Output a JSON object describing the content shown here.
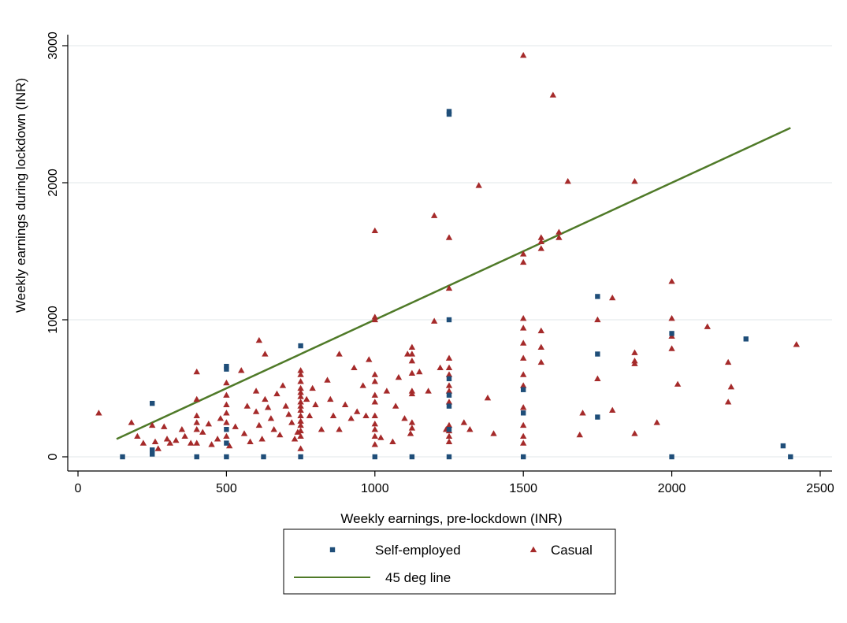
{
  "colors": {
    "self_employed": "#1f4e79",
    "casual": "#a52a2a",
    "line45": "#4f7a28",
    "grid": "#e8ecee",
    "axis": "#000000"
  },
  "chart_data": {
    "type": "scatter",
    "xlabel": "Weekly earnings, pre-lockdown (INR)",
    "ylabel": "Weekly earnings during lockdown (INR)",
    "xlim": [
      0,
      2500
    ],
    "ylim": [
      0,
      3000
    ],
    "xticks": [
      "0",
      "500",
      "1000",
      "1500",
      "2000",
      "2500"
    ],
    "yticks": [
      "0",
      "1000",
      "2000",
      "3000"
    ],
    "grid": "horizontal",
    "legend_position": "bottom",
    "series": [
      {
        "name": "Self-employed",
        "marker": "square",
        "points": [
          [
            150,
            0
          ],
          [
            250,
            390
          ],
          [
            250,
            50
          ],
          [
            250,
            20
          ],
          [
            400,
            0
          ],
          [
            500,
            0
          ],
          [
            500,
            660
          ],
          [
            500,
            640
          ],
          [
            500,
            200
          ],
          [
            500,
            100
          ],
          [
            625,
            0
          ],
          [
            750,
            0
          ],
          [
            750,
            810
          ],
          [
            1000,
            0
          ],
          [
            1125,
            0
          ],
          [
            1250,
            0
          ],
          [
            1250,
            2520
          ],
          [
            1250,
            2500
          ],
          [
            1250,
            1000
          ],
          [
            1250,
            570
          ],
          [
            1250,
            450
          ],
          [
            1250,
            370
          ],
          [
            1250,
            200
          ],
          [
            1500,
            0
          ],
          [
            1500,
            320
          ],
          [
            1500,
            490
          ],
          [
            1750,
            1170
          ],
          [
            1750,
            750
          ],
          [
            1750,
            290
          ],
          [
            2000,
            0
          ],
          [
            2000,
            900
          ],
          [
            2250,
            860
          ],
          [
            2375,
            80
          ],
          [
            2400,
            0
          ]
        ]
      },
      {
        "name": "Casual",
        "marker": "triangle",
        "points": [
          [
            70,
            320
          ],
          [
            180,
            250
          ],
          [
            200,
            150
          ],
          [
            220,
            100
          ],
          [
            250,
            230
          ],
          [
            260,
            110
          ],
          [
            270,
            60
          ],
          [
            290,
            220
          ],
          [
            300,
            130
          ],
          [
            310,
            100
          ],
          [
            330,
            120
          ],
          [
            350,
            200
          ],
          [
            360,
            150
          ],
          [
            380,
            100
          ],
          [
            400,
            620
          ],
          [
            400,
            420
          ],
          [
            400,
            300
          ],
          [
            400,
            250
          ],
          [
            400,
            200
          ],
          [
            400,
            100
          ],
          [
            420,
            180
          ],
          [
            440,
            240
          ],
          [
            450,
            90
          ],
          [
            470,
            130
          ],
          [
            480,
            280
          ],
          [
            500,
            540
          ],
          [
            500,
            450
          ],
          [
            500,
            380
          ],
          [
            500,
            320
          ],
          [
            500,
            250
          ],
          [
            500,
            150
          ],
          [
            510,
            80
          ],
          [
            530,
            220
          ],
          [
            550,
            630
          ],
          [
            560,
            170
          ],
          [
            570,
            370
          ],
          [
            580,
            110
          ],
          [
            600,
            480
          ],
          [
            600,
            330
          ],
          [
            610,
            850
          ],
          [
            610,
            230
          ],
          [
            620,
            130
          ],
          [
            630,
            750
          ],
          [
            630,
            420
          ],
          [
            640,
            360
          ],
          [
            650,
            280
          ],
          [
            660,
            200
          ],
          [
            670,
            460
          ],
          [
            680,
            160
          ],
          [
            690,
            520
          ],
          [
            700,
            370
          ],
          [
            710,
            310
          ],
          [
            720,
            250
          ],
          [
            730,
            130
          ],
          [
            740,
            180
          ],
          [
            750,
            630
          ],
          [
            750,
            600
          ],
          [
            750,
            550
          ],
          [
            750,
            500
          ],
          [
            750,
            470
          ],
          [
            750,
            440
          ],
          [
            750,
            400
          ],
          [
            750,
            370
          ],
          [
            750,
            340
          ],
          [
            750,
            300
          ],
          [
            750,
            260
          ],
          [
            750,
            230
          ],
          [
            750,
            190
          ],
          [
            750,
            150
          ],
          [
            750,
            60
          ],
          [
            770,
            420
          ],
          [
            780,
            300
          ],
          [
            790,
            500
          ],
          [
            800,
            380
          ],
          [
            820,
            200
          ],
          [
            840,
            560
          ],
          [
            850,
            420
          ],
          [
            860,
            300
          ],
          [
            880,
            750
          ],
          [
            880,
            200
          ],
          [
            900,
            380
          ],
          [
            920,
            280
          ],
          [
            930,
            650
          ],
          [
            940,
            330
          ],
          [
            960,
            520
          ],
          [
            970,
            300
          ],
          [
            980,
            710
          ],
          [
            1000,
            1650
          ],
          [
            1000,
            1020
          ],
          [
            1000,
            1000
          ],
          [
            1000,
            600
          ],
          [
            1000,
            550
          ],
          [
            1000,
            450
          ],
          [
            1000,
            400
          ],
          [
            1000,
            300
          ],
          [
            1000,
            240
          ],
          [
            1000,
            200
          ],
          [
            1000,
            150
          ],
          [
            1000,
            90
          ],
          [
            1020,
            140
          ],
          [
            1040,
            480
          ],
          [
            1060,
            110
          ],
          [
            1070,
            370
          ],
          [
            1080,
            580
          ],
          [
            1100,
            280
          ],
          [
            1110,
            750
          ],
          [
            1120,
            170
          ],
          [
            1125,
            800
          ],
          [
            1125,
            750
          ],
          [
            1125,
            700
          ],
          [
            1125,
            610
          ],
          [
            1125,
            480
          ],
          [
            1125,
            460
          ],
          [
            1125,
            250
          ],
          [
            1125,
            210
          ],
          [
            1150,
            620
          ],
          [
            1180,
            480
          ],
          [
            1200,
            1760
          ],
          [
            1200,
            990
          ],
          [
            1220,
            650
          ],
          [
            1240,
            200
          ],
          [
            1250,
            1600
          ],
          [
            1250,
            1230
          ],
          [
            1250,
            720
          ],
          [
            1250,
            650
          ],
          [
            1250,
            600
          ],
          [
            1250,
            520
          ],
          [
            1250,
            480
          ],
          [
            1250,
            400
          ],
          [
            1250,
            230
          ],
          [
            1250,
            190
          ],
          [
            1250,
            150
          ],
          [
            1250,
            110
          ],
          [
            1300,
            250
          ],
          [
            1320,
            200
          ],
          [
            1350,
            1980
          ],
          [
            1380,
            430
          ],
          [
            1400,
            170
          ],
          [
            1500,
            2930
          ],
          [
            1500,
            1480
          ],
          [
            1500,
            1420
          ],
          [
            1500,
            1010
          ],
          [
            1500,
            940
          ],
          [
            1500,
            830
          ],
          [
            1500,
            720
          ],
          [
            1500,
            600
          ],
          [
            1500,
            520
          ],
          [
            1500,
            360
          ],
          [
            1500,
            230
          ],
          [
            1500,
            150
          ],
          [
            1500,
            100
          ],
          [
            1560,
            1600
          ],
          [
            1560,
            1570
          ],
          [
            1560,
            1520
          ],
          [
            1560,
            920
          ],
          [
            1560,
            800
          ],
          [
            1560,
            690
          ],
          [
            1600,
            2640
          ],
          [
            1620,
            1640
          ],
          [
            1620,
            1600
          ],
          [
            1650,
            2010
          ],
          [
            1690,
            160
          ],
          [
            1700,
            320
          ],
          [
            1750,
            1000
          ],
          [
            1750,
            570
          ],
          [
            1800,
            1160
          ],
          [
            1800,
            340
          ],
          [
            1875,
            2010
          ],
          [
            1875,
            760
          ],
          [
            1875,
            700
          ],
          [
            1875,
            680
          ],
          [
            1875,
            170
          ],
          [
            1950,
            250
          ],
          [
            2000,
            1280
          ],
          [
            2000,
            1010
          ],
          [
            2000,
            880
          ],
          [
            2000,
            790
          ],
          [
            2020,
            530
          ],
          [
            2120,
            950
          ],
          [
            2190,
            690
          ],
          [
            2190,
            400
          ],
          [
            2200,
            510
          ],
          [
            2420,
            820
          ]
        ]
      },
      {
        "name": "45 deg line",
        "type": "line",
        "points": [
          [
            130,
            130
          ],
          [
            2400,
            2400
          ]
        ]
      }
    ]
  }
}
